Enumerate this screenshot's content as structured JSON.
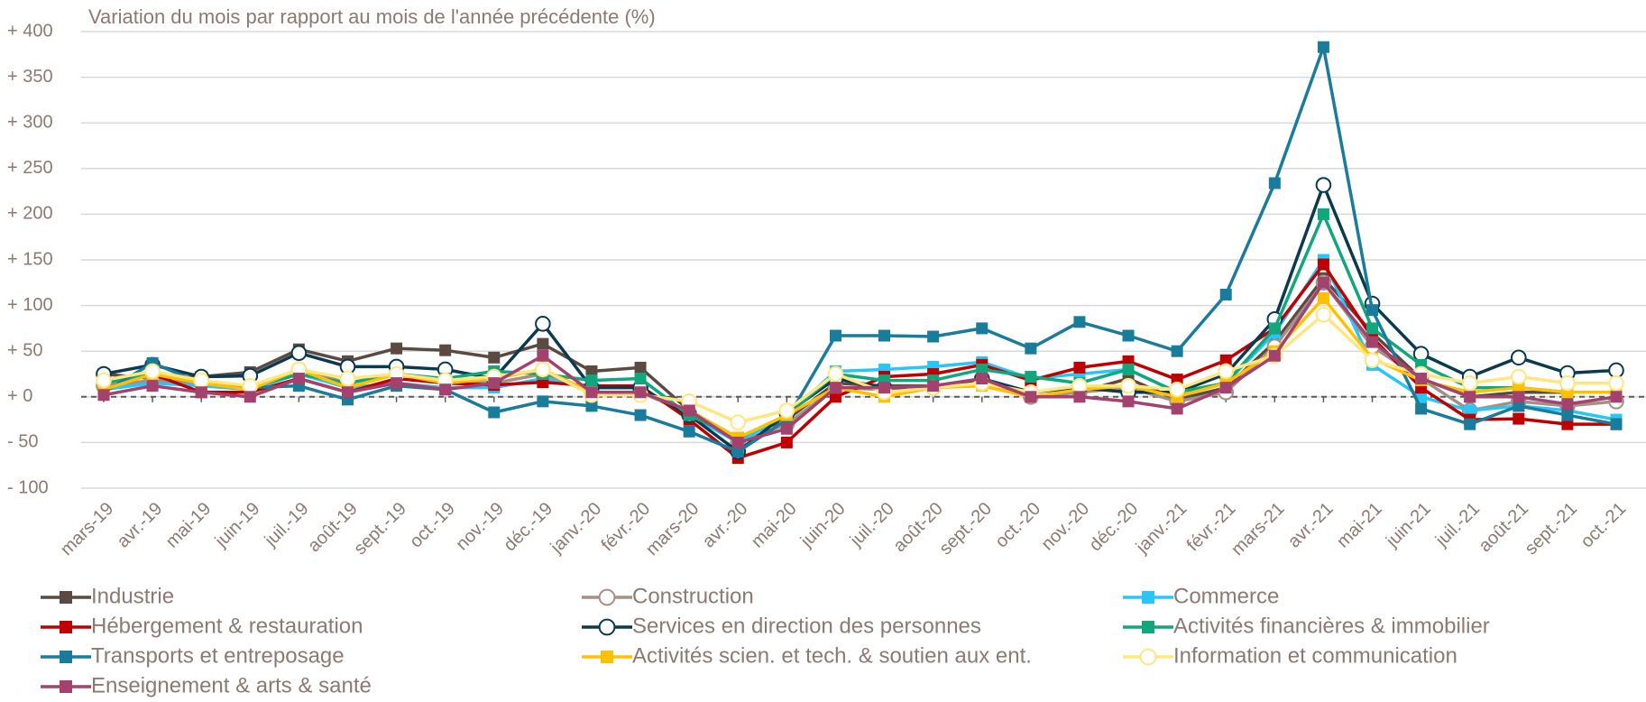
{
  "chart_data": {
    "type": "line",
    "title": "Variation du mois par rapport au mois de l'année précédente (%)",
    "categories": [
      "mars-19",
      "avr.-19",
      "mai-19",
      "juin-19",
      "juil.-19",
      "août-19",
      "sept.-19",
      "oct.-19",
      "nov.-19",
      "déc.-19",
      "janv.-20",
      "févr.-20",
      "mars-20",
      "avr.-20",
      "mai-20",
      "juin-20",
      "juil.-20",
      "août-20",
      "sept.-20",
      "oct.-20",
      "nov.-20",
      "déc.-20",
      "janv.-21",
      "févr.-21",
      "mars-21",
      "avr.-21",
      "mai-21",
      "juin-21",
      "juil.-21",
      "août-21",
      "sept.-21",
      "oct.-21"
    ],
    "ylim": [
      -100,
      400
    ],
    "yticks": [
      {
        "value": -100,
        "label": "- 100"
      },
      {
        "value": -50,
        "label": "- 50"
      },
      {
        "value": 0,
        "label": "+ 0"
      },
      {
        "value": 50,
        "label": "+ 50"
      },
      {
        "value": 100,
        "label": "+ 100"
      },
      {
        "value": 150,
        "label": "+ 150"
      },
      {
        "value": 200,
        "label": "+ 200"
      },
      {
        "value": 250,
        "label": "+ 250"
      },
      {
        "value": 300,
        "label": "+ 300"
      },
      {
        "value": 350,
        "label": "+ 350"
      },
      {
        "value": 400,
        "label": "+ 400"
      }
    ],
    "grid": true,
    "legend": "bottom",
    "series": [
      {
        "name": "Industrie",
        "color": "#5b4a42",
        "marker": "square",
        "values": [
          25,
          20,
          22,
          27,
          52,
          39,
          53,
          51,
          43,
          58,
          28,
          32,
          -15,
          -45,
          -25,
          15,
          12,
          12,
          15,
          0,
          5,
          20,
          -3,
          10,
          60,
          130,
          70,
          20,
          0,
          5,
          5,
          5
        ]
      },
      {
        "name": "Construction",
        "color": "#a39088",
        "marker": "circle",
        "values": [
          12,
          18,
          15,
          10,
          30,
          15,
          25,
          18,
          15,
          25,
          5,
          5,
          -18,
          -50,
          -30,
          10,
          8,
          10,
          15,
          0,
          5,
          10,
          -5,
          5,
          55,
          125,
          55,
          20,
          -15,
          -5,
          -10,
          -5
        ]
      },
      {
        "name": "Commerce",
        "color": "#29c5f6",
        "marker": "square",
        "values": [
          8,
          15,
          12,
          8,
          25,
          10,
          15,
          10,
          10,
          20,
          10,
          10,
          -20,
          -50,
          -20,
          28,
          30,
          33,
          38,
          20,
          25,
          30,
          5,
          15,
          70,
          150,
          35,
          0,
          -15,
          -10,
          -15,
          -25
        ]
      },
      {
        "name": "Hébergement & restauration",
        "color": "#c00000",
        "marker": "square",
        "values": [
          15,
          25,
          5,
          5,
          20,
          5,
          20,
          15,
          13,
          16,
          12,
          12,
          -25,
          -67,
          -50,
          0,
          22,
          25,
          35,
          18,
          32,
          39,
          19,
          40,
          75,
          145,
          65,
          10,
          -25,
          -24,
          -30,
          -30
        ]
      },
      {
        "name": "Services en direction des personnes",
        "color": "#0b3a4e",
        "marker": "circle",
        "values": [
          25,
          35,
          22,
          23,
          48,
          33,
          33,
          30,
          20,
          80,
          10,
          10,
          -20,
          -60,
          -18,
          20,
          10,
          10,
          20,
          5,
          10,
          5,
          5,
          25,
          85,
          232,
          102,
          47,
          22,
          43,
          26,
          29
        ]
      },
      {
        "name": "Activités financières & immobilier",
        "color": "#11a77c",
        "marker": "square",
        "values": [
          15,
          25,
          15,
          10,
          25,
          15,
          25,
          20,
          28,
          25,
          18,
          20,
          -20,
          -45,
          -20,
          25,
          18,
          18,
          30,
          22,
          15,
          30,
          5,
          15,
          75,
          200,
          75,
          35,
          10,
          10,
          5,
          5
        ]
      },
      {
        "name": "Transports et entreposage",
        "color": "#1a7c9c",
        "marker": "square",
        "values": [
          5,
          37,
          15,
          10,
          12,
          -3,
          12,
          8,
          -17,
          -5,
          -10,
          -20,
          -38,
          -60,
          -25,
          67,
          67,
          66,
          75,
          53,
          82,
          67,
          50,
          112,
          234,
          383,
          95,
          -13,
          -30,
          -10,
          -20,
          -30
        ]
      },
      {
        "name": "Activités scien. et tech. & soutien aux ent.",
        "color": "#ffc000",
        "marker": "square",
        "values": [
          8,
          25,
          15,
          8,
          30,
          10,
          25,
          15,
          20,
          30,
          5,
          5,
          -15,
          -45,
          -20,
          10,
          0,
          10,
          12,
          0,
          8,
          12,
          0,
          15,
          50,
          108,
          42,
          18,
          5,
          10,
          5,
          5
        ]
      },
      {
        "name": "Information et communication",
        "color": "#ffe680",
        "marker": "circle",
        "values": [
          18,
          28,
          18,
          12,
          30,
          20,
          25,
          18,
          22,
          30,
          2,
          2,
          -5,
          -28,
          -15,
          25,
          5,
          10,
          15,
          5,
          12,
          12,
          8,
          28,
          45,
          90,
          40,
          25,
          15,
          22,
          15,
          15
        ]
      },
      {
        "name": "Enseignement & arts & santé",
        "color": "#a3426f",
        "marker": "square",
        "values": [
          2,
          12,
          5,
          0,
          20,
          5,
          15,
          8,
          15,
          45,
          5,
          5,
          -15,
          -50,
          -35,
          10,
          10,
          12,
          20,
          0,
          0,
          -5,
          -13,
          10,
          45,
          125,
          60,
          20,
          0,
          0,
          -8,
          0
        ]
      }
    ]
  }
}
